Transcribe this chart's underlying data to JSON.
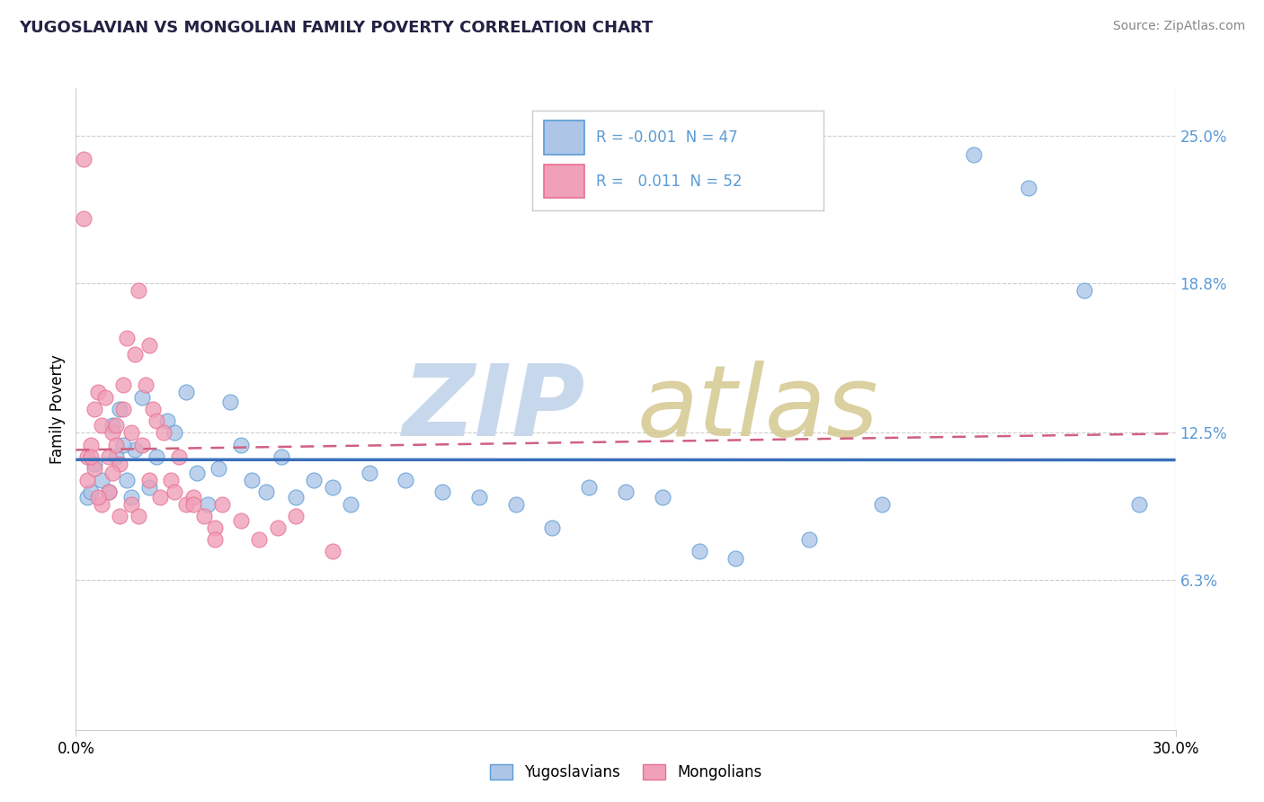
{
  "title": "YUGOSLAVIAN VS MONGOLIAN FAMILY POVERTY CORRELATION CHART",
  "source": "Source: ZipAtlas.com",
  "ylabel": "Family Poverty",
  "ytick_vals": [
    6.3,
    12.5,
    18.8,
    25.0
  ],
  "xlim": [
    0.0,
    30.0
  ],
  "ylim": [
    0.0,
    27.0
  ],
  "blue_color": "#5b9bd5",
  "pink_color": "#e87090",
  "blue_fill": "#adc6e8",
  "pink_fill": "#f0a0b8",
  "trend_blue_color": "#3a6fba",
  "trend_pink_color": "#d06080",
  "background_color": "#ffffff",
  "grid_color": "#cccccc",
  "yug_x": [
    0.3,
    0.5,
    0.7,
    0.9,
    1.0,
    1.2,
    1.4,
    1.6,
    1.8,
    2.0,
    2.2,
    2.5,
    2.7,
    3.0,
    3.3,
    3.6,
    3.9,
    4.2,
    4.5,
    4.8,
    5.2,
    5.6,
    6.0,
    6.5,
    7.0,
    7.5,
    8.0,
    9.0,
    10.0,
    11.0,
    12.0,
    13.0,
    14.0,
    15.0,
    16.0,
    17.0,
    18.0,
    20.0,
    22.0,
    24.5,
    26.0,
    27.5,
    29.0,
    0.4,
    1.1,
    1.3,
    1.5
  ],
  "yug_y": [
    9.8,
    11.2,
    10.5,
    10.0,
    12.8,
    13.5,
    10.5,
    11.8,
    14.0,
    10.2,
    11.5,
    13.0,
    12.5,
    14.2,
    10.8,
    9.5,
    11.0,
    13.8,
    12.0,
    10.5,
    10.0,
    11.5,
    9.8,
    10.5,
    10.2,
    9.5,
    10.8,
    10.5,
    10.0,
    9.8,
    9.5,
    8.5,
    10.2,
    10.0,
    9.8,
    7.5,
    7.2,
    8.0,
    9.5,
    24.2,
    22.8,
    18.5,
    9.5,
    10.0,
    11.5,
    12.0,
    9.8
  ],
  "mon_x": [
    0.2,
    0.3,
    0.4,
    0.5,
    0.6,
    0.7,
    0.8,
    0.9,
    1.0,
    1.1,
    1.2,
    1.3,
    1.4,
    1.5,
    1.6,
    1.7,
    1.8,
    1.9,
    2.0,
    2.1,
    2.2,
    2.4,
    2.6,
    2.8,
    3.0,
    3.2,
    3.5,
    3.8,
    4.0,
    4.5,
    5.0,
    5.5,
    6.0,
    7.0,
    0.3,
    0.5,
    0.7,
    0.9,
    1.1,
    1.3,
    1.5,
    1.7,
    2.0,
    2.3,
    2.7,
    3.2,
    3.8,
    0.4,
    0.6,
    1.0,
    1.2,
    0.2
  ],
  "mon_y": [
    24.0,
    11.5,
    12.0,
    13.5,
    14.2,
    12.8,
    14.0,
    11.5,
    12.5,
    12.8,
    11.2,
    14.5,
    16.5,
    12.5,
    15.8,
    18.5,
    12.0,
    14.5,
    16.2,
    13.5,
    13.0,
    12.5,
    10.5,
    11.5,
    9.5,
    9.8,
    9.0,
    8.5,
    9.5,
    8.8,
    8.0,
    8.5,
    9.0,
    7.5,
    10.5,
    11.0,
    9.5,
    10.0,
    12.0,
    13.5,
    9.5,
    9.0,
    10.5,
    9.8,
    10.0,
    9.5,
    8.0,
    11.5,
    9.8,
    10.8,
    9.0,
    21.5
  ]
}
